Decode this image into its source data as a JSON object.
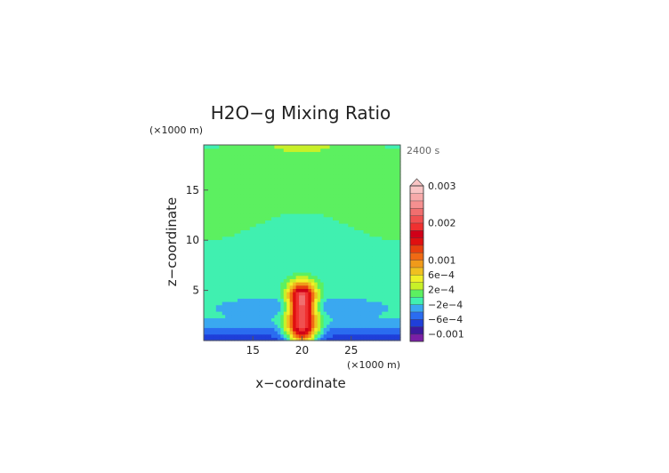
{
  "chart_data": {
    "type": "heatmap",
    "title": "H2O−g Mixing Ratio",
    "time_label": "2400 s",
    "xlabel": "x−coordinate",
    "ylabel": "z−coordinate",
    "x_unit": "(×1000 m)",
    "y_unit": "(×1000 m)",
    "xlim": [
      10,
      30
    ],
    "ylim": [
      0,
      19.5
    ],
    "x_ticks": [
      "15",
      "20",
      "25"
    ],
    "y_ticks": [
      "5",
      "10",
      "15"
    ],
    "colorbar": {
      "labels": [
        "0.003",
        "0.002",
        "0.001",
        "6e−4",
        "2e−4",
        "−2e−4",
        "−6e−4",
        "−0.001"
      ],
      "levels": [
        -0.0012,
        -0.001,
        -0.0008,
        -0.0006,
        -0.0004,
        -0.0002,
        0,
        0.0002,
        0.0004,
        0.0006,
        0.0008,
        0.001,
        0.0012,
        0.0014,
        0.0016,
        0.0018,
        0.002,
        0.0022,
        0.0024,
        0.0026,
        0.0028,
        0.003
      ],
      "colors": [
        "#7a1fa6",
        "#3c1a9e",
        "#1f3fd9",
        "#2a6cf0",
        "#3aa8f0",
        "#40f0b0",
        "#5cf060",
        "#c8f028",
        "#f0f028",
        "#f0c020",
        "#f09a1a",
        "#f06a14",
        "#e8400e",
        "#e01010",
        "#d00018",
        "#f03030",
        "#f05050",
        "#f06f6f",
        "#f59090",
        "#f7aaaa",
        "#f9c4c4"
      ],
      "extend": "max"
    }
  }
}
